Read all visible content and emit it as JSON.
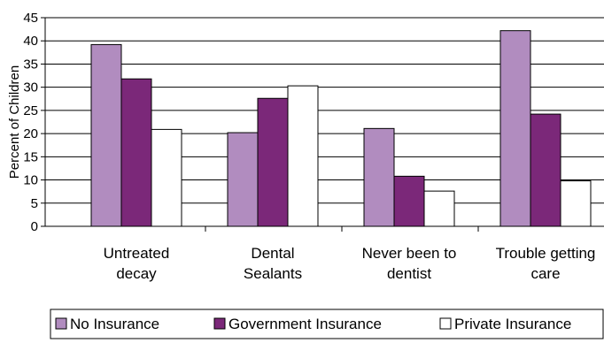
{
  "chart_data": {
    "type": "bar",
    "ylabel": "Percent of Children",
    "xlabel": "",
    "title": "",
    "ylim": [
      0,
      45
    ],
    "yticks": [
      0,
      5,
      10,
      15,
      20,
      25,
      30,
      35,
      40,
      45
    ],
    "grid": true,
    "legend_position": "bottom",
    "categories": [
      [
        "Untreated",
        "decay"
      ],
      [
        "Dental",
        "Sealants"
      ],
      [
        "Never been to",
        "dentist"
      ],
      [
        "Trouble getting",
        "care"
      ]
    ],
    "series": [
      {
        "name": "No Insurance",
        "color": "#b18cbf",
        "values": [
          39.2,
          20.2,
          21.1,
          42.2
        ]
      },
      {
        "name": "Government Insurance",
        "color": "#7b2879",
        "values": [
          31.8,
          27.6,
          10.8,
          24.2
        ]
      },
      {
        "name": "Private Insurance",
        "color": "#ffffff",
        "values": [
          20.9,
          30.3,
          7.6,
          9.8
        ]
      }
    ]
  }
}
